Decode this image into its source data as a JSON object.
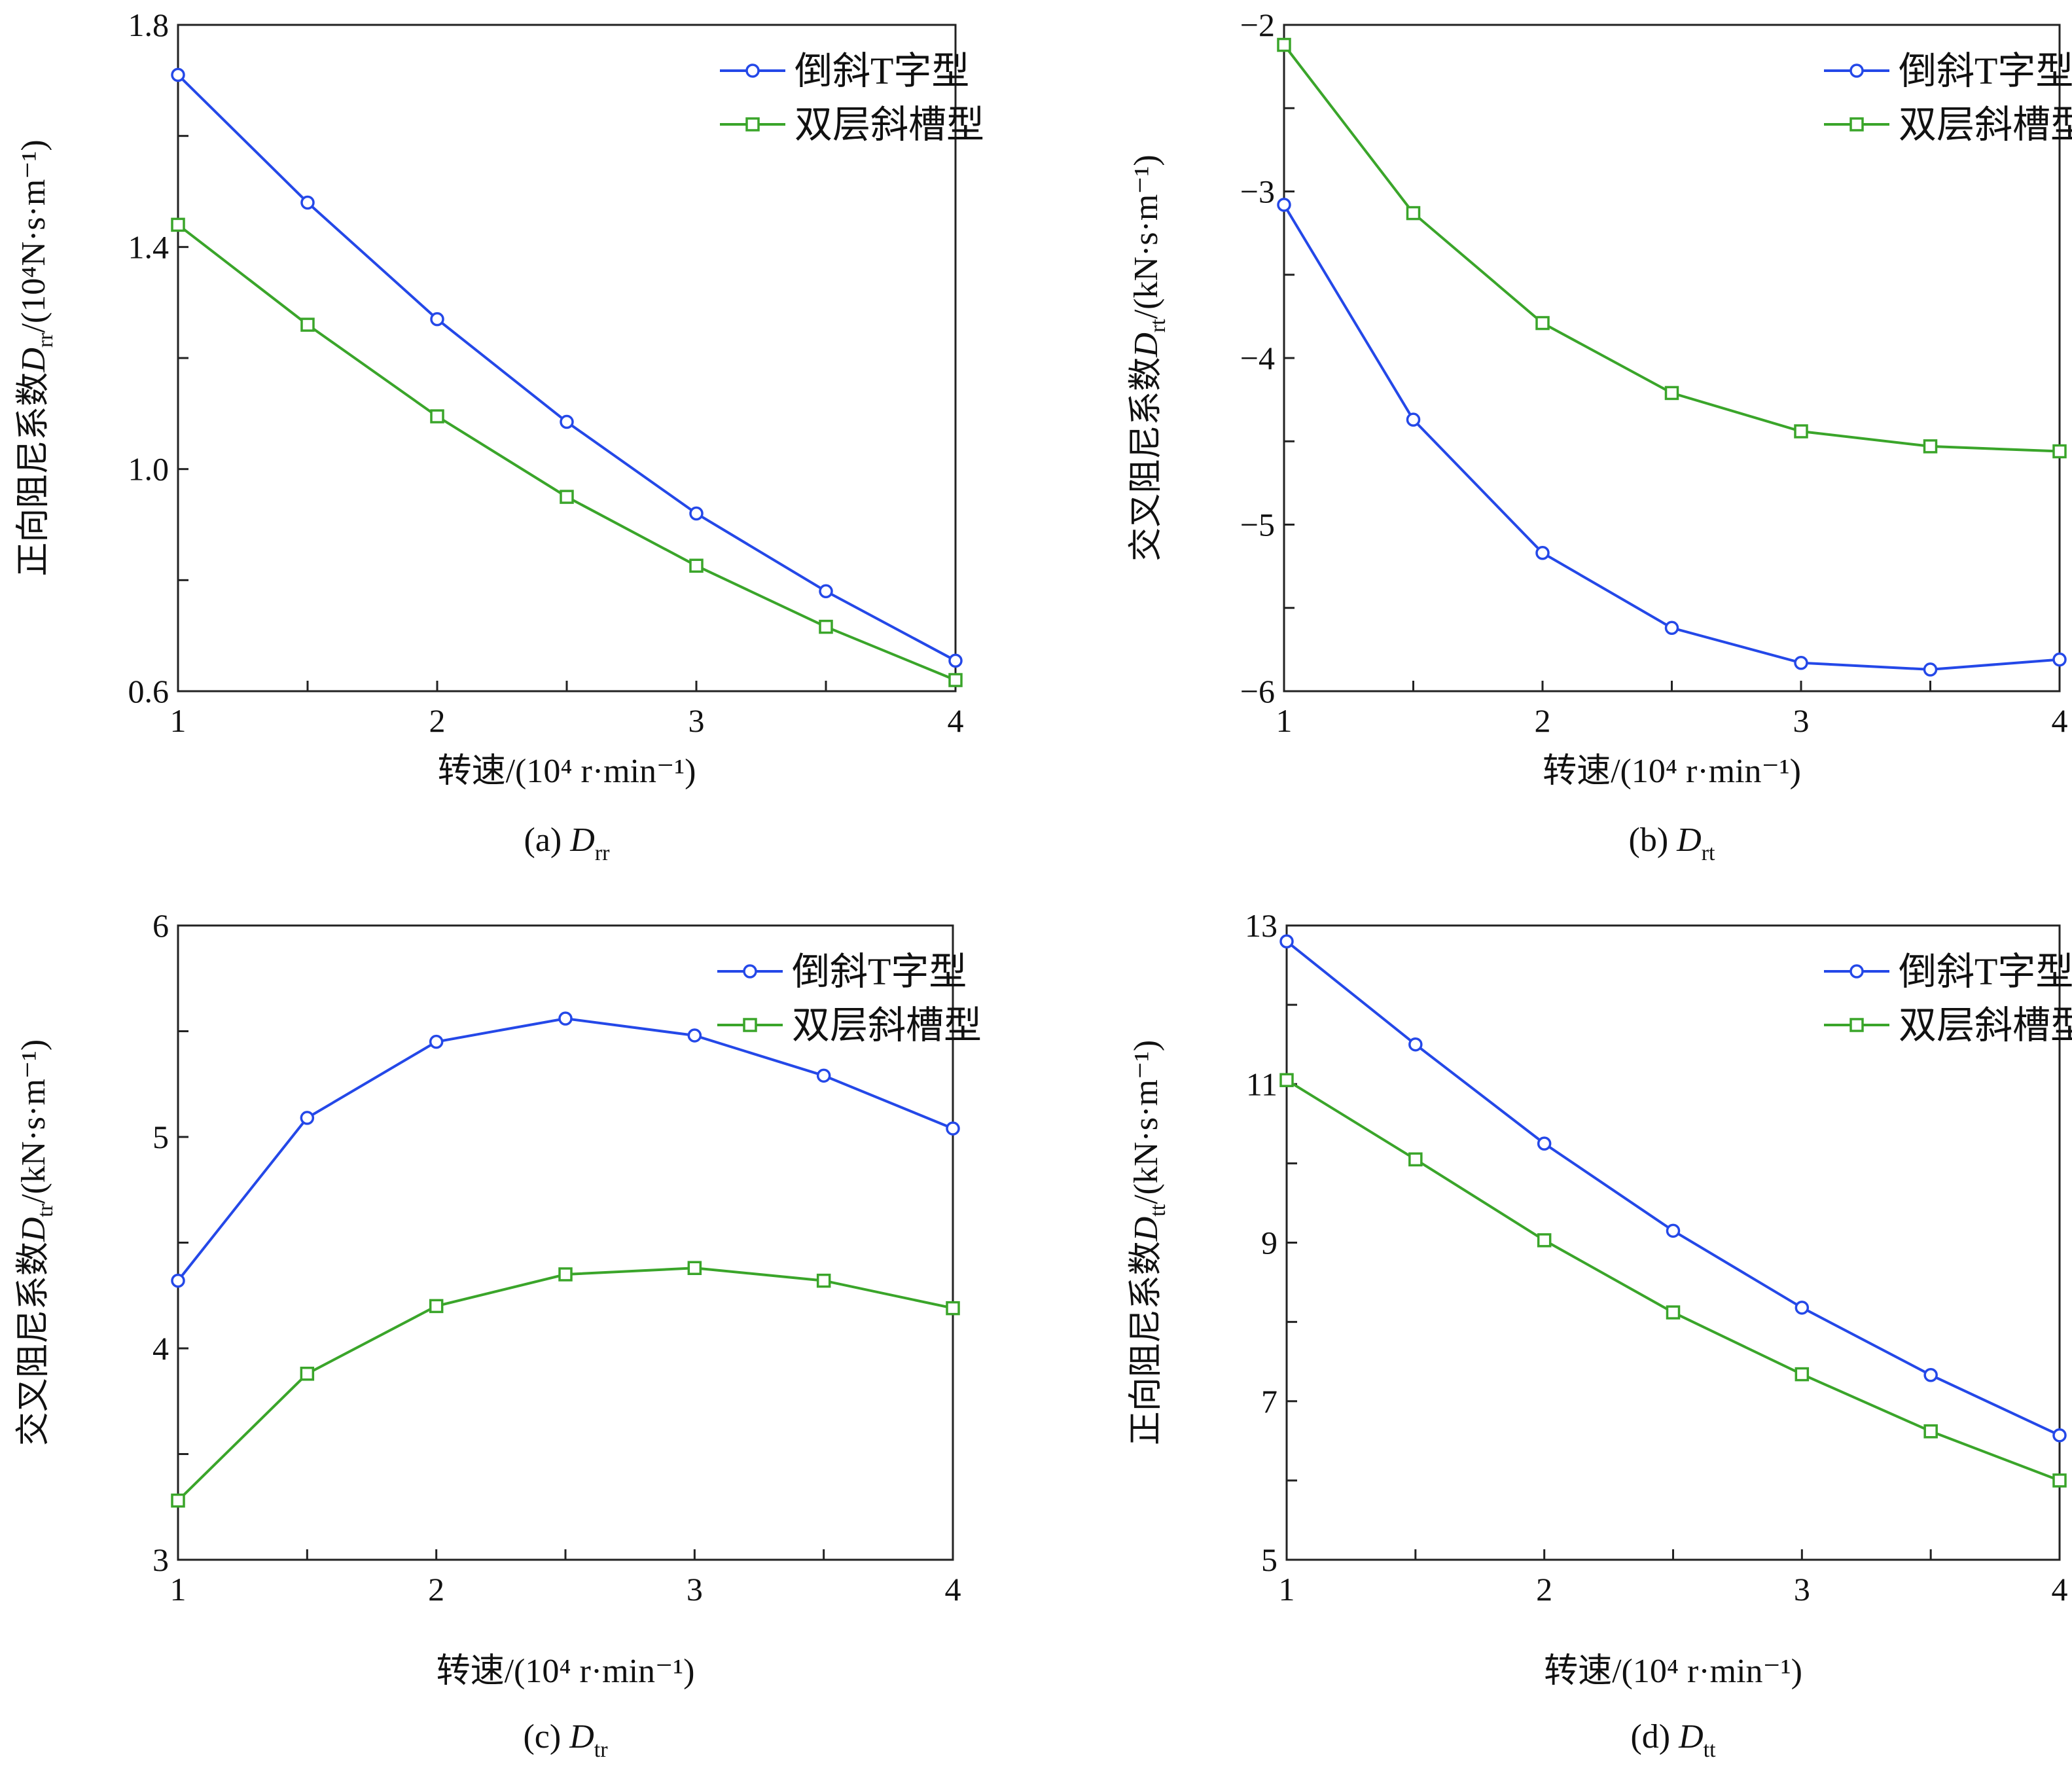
{
  "colors": {
    "series1": "#2448e8",
    "series2": "#3aa52a",
    "axis": "#222222"
  },
  "chart_data": [
    {
      "id": "a",
      "type": "line",
      "title": "(a) Drr",
      "caption_prefix": "(a) ",
      "caption_sym": "D",
      "caption_sub": "rr",
      "xlabel": "转速/(10⁴ r·min⁻¹)",
      "ylabel": "正向阻尼系数Drr/(10⁴N·s·m⁻¹)",
      "ylabel_main": "正向阻尼系数",
      "ylabel_sym": "D",
      "ylabel_sub": "rr",
      "ylabel_unit": "/(10⁴N·s·m⁻¹)",
      "xlim": [
        1,
        4
      ],
      "ylim": [
        0.6,
        1.8
      ],
      "xticks": [
        1,
        1.5,
        2,
        2.5,
        3,
        3.5,
        4
      ],
      "xtick_labels": [
        "1",
        "",
        "2",
        "",
        "3",
        "",
        "4"
      ],
      "yticks": [
        0.6,
        0.8,
        1.0,
        1.2,
        1.4,
        1.6,
        1.8
      ],
      "ytick_labels": [
        "0.6",
        "",
        "1.0",
        "",
        "1.4",
        "",
        "1.8"
      ],
      "legend_pos": "top-right",
      "x": [
        1,
        1.5,
        2,
        2.5,
        3,
        3.5,
        4
      ],
      "series": [
        {
          "name": "倒斜T字型",
          "marker": "circle",
          "values": [
            1.71,
            1.48,
            1.27,
            1.085,
            0.92,
            0.78,
            0.655
          ]
        },
        {
          "name": "双层斜槽型",
          "marker": "square",
          "values": [
            1.44,
            1.26,
            1.095,
            0.95,
            0.826,
            0.716,
            0.62
          ]
        }
      ]
    },
    {
      "id": "b",
      "type": "line",
      "title": "(b) Drt",
      "caption_prefix": "(b) ",
      "caption_sym": "D",
      "caption_sub": "rt",
      "xlabel": "转速/(10⁴ r·min⁻¹)",
      "ylabel": "交叉阻尼系数Drt/(kN·s·m⁻¹)",
      "ylabel_main": "交叉阻尼系数",
      "ylabel_sym": "D",
      "ylabel_sub": "rt",
      "ylabel_unit": "/(kN·s·m⁻¹)",
      "xlim": [
        1,
        4
      ],
      "ylim": [
        -6,
        -2
      ],
      "xticks": [
        1,
        1.5,
        2,
        2.5,
        3,
        3.5,
        4
      ],
      "xtick_labels": [
        "1",
        "",
        "2",
        "",
        "3",
        "",
        "4"
      ],
      "yticks": [
        -6,
        -5.5,
        -5,
        -4.5,
        -4,
        -3.5,
        -3,
        -2.5,
        -2
      ],
      "ytick_labels": [
        "−6",
        "",
        "−5",
        "",
        "−4",
        "",
        "−3",
        "",
        "−2"
      ],
      "legend_pos": "top-right",
      "x": [
        1,
        1.5,
        2,
        2.5,
        3,
        3.5,
        4
      ],
      "series": [
        {
          "name": "倒斜T字型",
          "marker": "circle",
          "values": [
            -3.08,
            -4.37,
            -5.17,
            -5.62,
            -5.83,
            -5.87,
            -5.81
          ]
        },
        {
          "name": "双层斜槽型",
          "marker": "square",
          "values": [
            -2.12,
            -3.13,
            -3.79,
            -4.21,
            -4.44,
            -4.53,
            -4.56
          ]
        }
      ]
    },
    {
      "id": "c",
      "type": "line",
      "title": "(c) Dtr",
      "caption_prefix": "(c) ",
      "caption_sym": "D",
      "caption_sub": "tr",
      "xlabel": "转速/(10⁴ r·min⁻¹)",
      "ylabel": "交叉阻尼系数Dtr/(kN·s·m⁻¹)",
      "ylabel_main": "交叉阻尼系数",
      "ylabel_sym": "D",
      "ylabel_sub": "tr",
      "ylabel_unit": "/(kN·s·m⁻¹)",
      "xlim": [
        1,
        4
      ],
      "ylim": [
        3,
        6
      ],
      "xticks": [
        1,
        1.5,
        2,
        2.5,
        3,
        3.5,
        4
      ],
      "xtick_labels": [
        "1",
        "",
        "2",
        "",
        "3",
        "",
        "4"
      ],
      "yticks": [
        3,
        3.5,
        4,
        4.5,
        5,
        5.5,
        6
      ],
      "ytick_labels": [
        "3",
        "",
        "4",
        "",
        "5",
        "",
        "6"
      ],
      "legend_pos": "top-right",
      "x": [
        1,
        1.5,
        2,
        2.5,
        3,
        3.5,
        4
      ],
      "series": [
        {
          "name": "倒斜T字型",
          "marker": "circle",
          "values": [
            4.32,
            5.09,
            5.45,
            5.56,
            5.48,
            5.29,
            5.04
          ]
        },
        {
          "name": "双层斜槽型",
          "marker": "square",
          "values": [
            3.28,
            3.88,
            4.2,
            4.35,
            4.38,
            4.32,
            4.19
          ]
        }
      ]
    },
    {
      "id": "d",
      "type": "line",
      "title": "(d) Dtt",
      "caption_prefix": "(d) ",
      "caption_sym": "D",
      "caption_sub": "tt",
      "xlabel": "转速/(10⁴ r·min⁻¹)",
      "ylabel": "正向阻尼系数Dtt/(kN·s·m⁻¹)",
      "ylabel_main": "正向阻尼系数",
      "ylabel_sym": "D",
      "ylabel_sub": "tt",
      "ylabel_unit": "/(kN·s·m⁻¹)",
      "xlim": [
        1,
        4
      ],
      "ylim": [
        5,
        13
      ],
      "xticks": [
        1,
        1.5,
        2,
        2.5,
        3,
        3.5,
        4
      ],
      "xtick_labels": [
        "1",
        "",
        "2",
        "",
        "3",
        "",
        "4"
      ],
      "yticks": [
        5,
        6,
        7,
        8,
        9,
        10,
        11,
        12,
        13
      ],
      "ytick_labels": [
        "5",
        "",
        "7",
        "",
        "9",
        "",
        "11",
        "",
        "13"
      ],
      "legend_pos": "top-right",
      "x": [
        1,
        1.5,
        2,
        2.5,
        3,
        3.5,
        4
      ],
      "series": [
        {
          "name": "倒斜T字型",
          "marker": "circle",
          "values": [
            12.8,
            11.5,
            10.25,
            9.15,
            8.18,
            7.33,
            6.57
          ]
        },
        {
          "name": "双层斜槽型",
          "marker": "square",
          "values": [
            11.05,
            10.05,
            9.03,
            8.12,
            7.34,
            6.62,
            6.0
          ]
        }
      ]
    }
  ]
}
